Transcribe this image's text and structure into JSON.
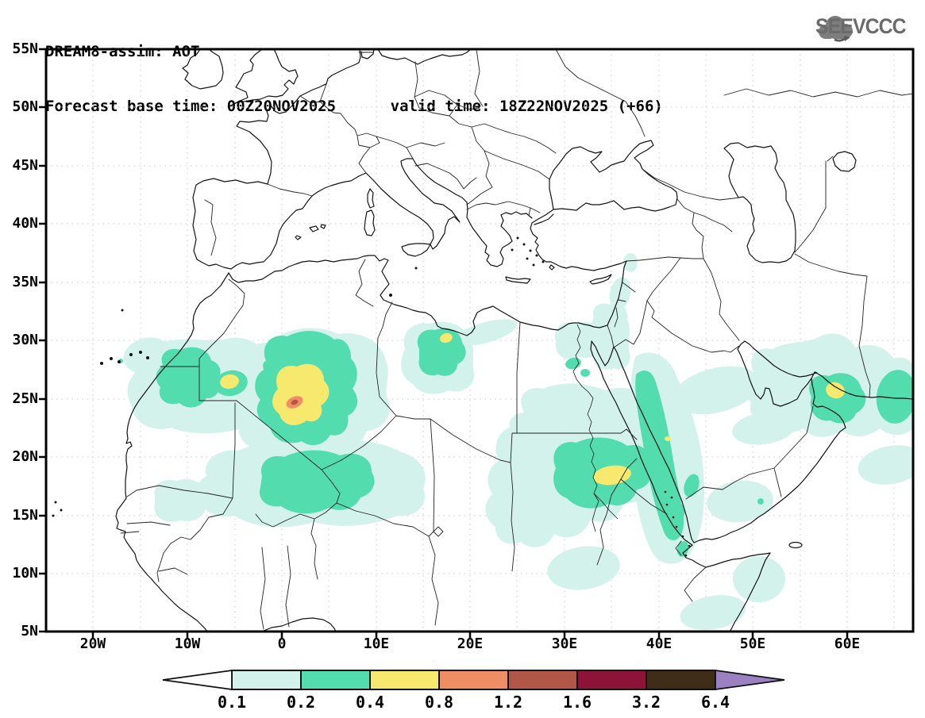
{
  "header": {
    "title_line1": "DREAM8-assim: AOT",
    "title_line2": "Forecast base time: 00Z20NOV2025      valid time: 18Z22NOV2025 (+66)",
    "logo_text": "SEEVCCC"
  },
  "axes": {
    "lat_ticks": [
      "55N",
      "50N",
      "45N",
      "40N",
      "35N",
      "30N",
      "25N",
      "20N",
      "15N",
      "10N",
      "5N"
    ],
    "lon_ticks": [
      "20W",
      "10W",
      "0",
      "10E",
      "20E",
      "30E",
      "40E",
      "50E",
      "60E"
    ]
  },
  "palette": {
    "cyan": "#d3f2ec",
    "green": "#53dcae",
    "yellow": "#f6e96e",
    "orange": "#ef8e64",
    "brick": "#b25748",
    "maroon": "#8e1338",
    "brown": "#3f2d1a",
    "purple": "#9c81c2",
    "white": "#ffffff"
  },
  "colorbar": {
    "labels": [
      "0.1",
      "0.2",
      "0.4",
      "0.8",
      "1.2",
      "1.6",
      "3.2",
      "6.4"
    ],
    "segment_colors": [
      "cyan",
      "green",
      "yellow",
      "orange",
      "brick",
      "maroon",
      "brown"
    ],
    "left_arrow": "white",
    "right_arrow": "purple"
  },
  "chart_data": {
    "type": "map-contour",
    "variable": "AOT",
    "model": "DREAM8-assim",
    "base_time": "00Z20NOV2025",
    "valid_time": "18Z22NOV2025 (+66)",
    "contour_levels": [
      0.1,
      0.2,
      0.4,
      0.8,
      1.2,
      1.6,
      3.2,
      6.4
    ],
    "lat_range": [
      "5N",
      "55N"
    ],
    "lon_range": [
      "25W",
      "65E"
    ],
    "maxima": [
      {
        "region": "central Algeria",
        "lon": "1E",
        "lat": "24.5N",
        "value": "0.8-1.2"
      },
      {
        "region": "Mauritania/W Sahara",
        "lon": "6W",
        "lat": "26N",
        "value": "0.4-0.8"
      },
      {
        "region": "NW Libya",
        "lon": "15E",
        "lat": "30N",
        "value": "0.4-0.8"
      },
      {
        "region": "Sudan",
        "lon": "33E",
        "lat": "18.5N",
        "value": "0.4-0.8"
      },
      {
        "region": "Gulf of Oman / Hormuz",
        "lon": "57E",
        "lat": "24.5N",
        "value": "0.4-0.8"
      },
      {
        "region": "Mali/Niger Sahel",
        "lon": "0E",
        "lat": "18N",
        "value": "0.2-0.4"
      },
      {
        "region": "Red Sea coast band",
        "lon": "37E",
        "lat": "15-28N",
        "value": "0.2-0.4"
      }
    ]
  }
}
